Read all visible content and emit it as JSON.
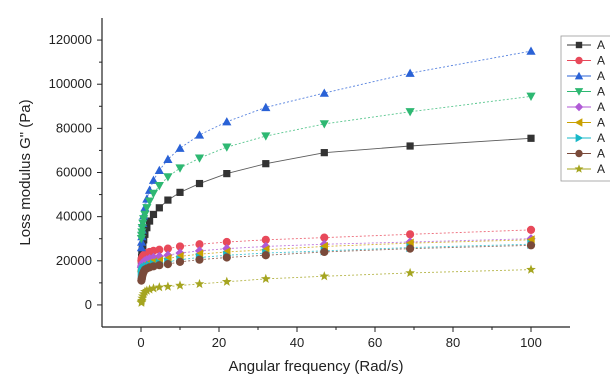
{
  "chart_data": {
    "type": "line",
    "title": "",
    "xlabel": "Angular frequency (Rad/s)",
    "ylabel": "Loss modulus G\" (Pa)",
    "xlim": [
      -10,
      110
    ],
    "ylim": [
      -10000,
      130000
    ],
    "xticks": [
      0,
      20,
      40,
      60,
      80,
      100
    ],
    "yticks": [
      0,
      20000,
      40000,
      60000,
      80000,
      100000,
      120000
    ],
    "grid": false,
    "legend_position": "right (cropped)",
    "x": [
      0.1,
      0.15,
      0.22,
      0.32,
      0.47,
      0.69,
      1.0,
      1.5,
      2.2,
      3.2,
      4.7,
      6.9,
      10,
      15,
      22,
      32,
      47,
      69,
      100
    ],
    "series": [
      {
        "name": "A",
        "marker": "square",
        "color": "#333333",
        "values": [
          20000,
          21500,
          23000,
          25000,
          27000,
          29500,
          32000,
          35000,
          38000,
          41000,
          44000,
          47500,
          51000,
          55000,
          59500,
          64000,
          69000,
          72000,
          75500
        ]
      },
      {
        "name": "A",
        "marker": "circle",
        "color": "#e8495a",
        "values": [
          20000,
          20500,
          21000,
          21500,
          22000,
          22500,
          23000,
          23500,
          24000,
          24500,
          25000,
          25500,
          26500,
          27500,
          28500,
          29500,
          30500,
          32000,
          34000
        ]
      },
      {
        "name": "A",
        "marker": "triangle-up",
        "color": "#2a62d6",
        "values": [
          26000,
          28500,
          31000,
          34000,
          37000,
          40500,
          44000,
          48000,
          52000,
          56500,
          61000,
          66000,
          71000,
          77000,
          83000,
          89500,
          96000,
          105000,
          115000
        ]
      },
      {
        "name": "A",
        "marker": "triangle-down",
        "color": "#2eb872",
        "values": [
          30000,
          31500,
          33000,
          35000,
          37000,
          39000,
          41000,
          44000,
          47000,
          50500,
          54000,
          58000,
          62000,
          66500,
          71500,
          76500,
          82000,
          87500,
          94500
        ]
      },
      {
        "name": "A",
        "marker": "diamond",
        "color": "#b05ad6",
        "values": [
          17000,
          17500,
          18000,
          18500,
          19000,
          19500,
          20000,
          20500,
          21000,
          21500,
          22000,
          22500,
          23500,
          24500,
          25500,
          26500,
          27500,
          28500,
          30000
        ]
      },
      {
        "name": "A",
        "marker": "triangle-left",
        "color": "#c9a000",
        "values": [
          15000,
          15500,
          16000,
          16500,
          17000,
          17500,
          18000,
          18500,
          19000,
          19500,
          20000,
          21000,
          22000,
          23000,
          24000,
          25000,
          26500,
          28000,
          29500
        ]
      },
      {
        "name": "A",
        "marker": "triangle-right",
        "color": "#17b8c8",
        "values": [
          14000,
          14500,
          15000,
          15500,
          16000,
          16500,
          17000,
          17500,
          18000,
          18500,
          19000,
          19500,
          20500,
          21500,
          22500,
          23500,
          24500,
          26000,
          27500
        ]
      },
      {
        "name": "A",
        "marker": "circle",
        "color": "#7a4a3a",
        "values": [
          11000,
          11500,
          12000,
          13000,
          14000,
          15000,
          16000,
          16500,
          17000,
          17500,
          18000,
          18500,
          19500,
          20500,
          21500,
          22500,
          24000,
          25500,
          27000
        ]
      },
      {
        "name": "A",
        "marker": "star",
        "color": "#a5a520",
        "values": [
          1000,
          1500,
          2000,
          3000,
          4000,
          5000,
          6000,
          6500,
          7000,
          7500,
          8000,
          8300,
          8800,
          9500,
          10500,
          11800,
          13000,
          14500,
          16000
        ]
      }
    ]
  }
}
